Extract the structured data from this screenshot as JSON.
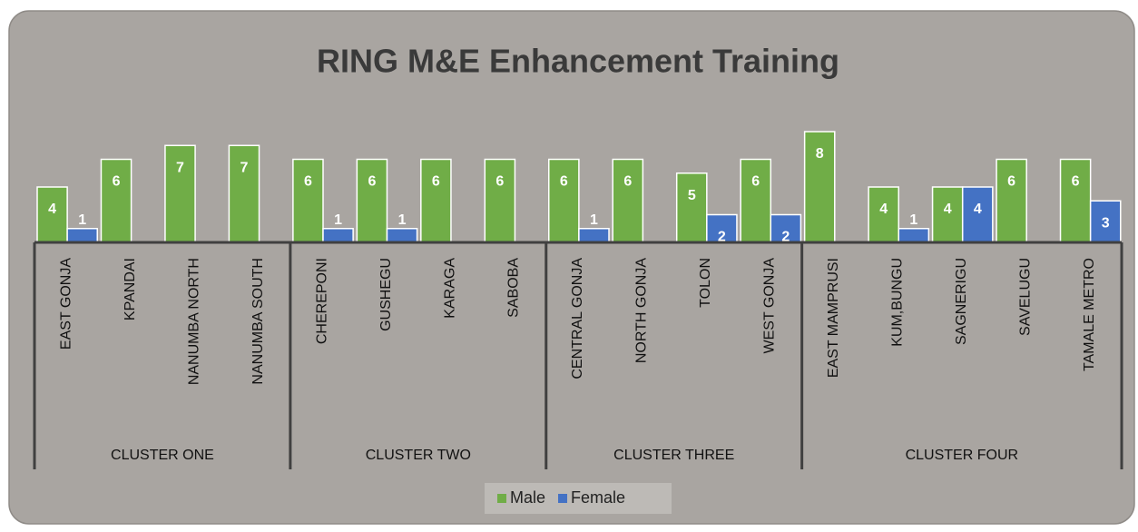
{
  "chart_data": {
    "type": "bar",
    "title": "RING M&E Enhancement Training",
    "groups": [
      {
        "name": "CLUSTER ONE",
        "categories": [
          "EAST GONJA",
          "KPANDAI",
          "NANUMBA NORTH",
          "NANUMBA SOUTH"
        ]
      },
      {
        "name": "CLUSTER TWO",
        "categories": [
          "CHEREPONI",
          "GUSHEGU",
          "KARAGA",
          "SABOBA"
        ]
      },
      {
        "name": "CLUSTER THREE",
        "categories": [
          "CENTRAL GONJA",
          "NORTH GONJA",
          "TOLON",
          "WEST GONJA"
        ]
      },
      {
        "name": "CLUSTER FOUR",
        "categories": [
          "EAST MAMPRUSI",
          "KUM,BUNGU",
          "SAGNERIGU",
          "SAVELUGU",
          "TAMALE METRO"
        ]
      }
    ],
    "series": [
      {
        "name": "Male",
        "color": "#70ad47",
        "values": [
          4,
          6,
          7,
          7,
          6,
          6,
          6,
          6,
          6,
          6,
          5,
          6,
          8,
          4,
          4,
          6,
          6
        ]
      },
      {
        "name": "Female",
        "color": "#4472c4",
        "values": [
          1,
          null,
          null,
          null,
          1,
          1,
          null,
          null,
          1,
          null,
          2,
          2,
          null,
          1,
          4,
          null,
          3
        ]
      }
    ],
    "legend": "bottom"
  }
}
